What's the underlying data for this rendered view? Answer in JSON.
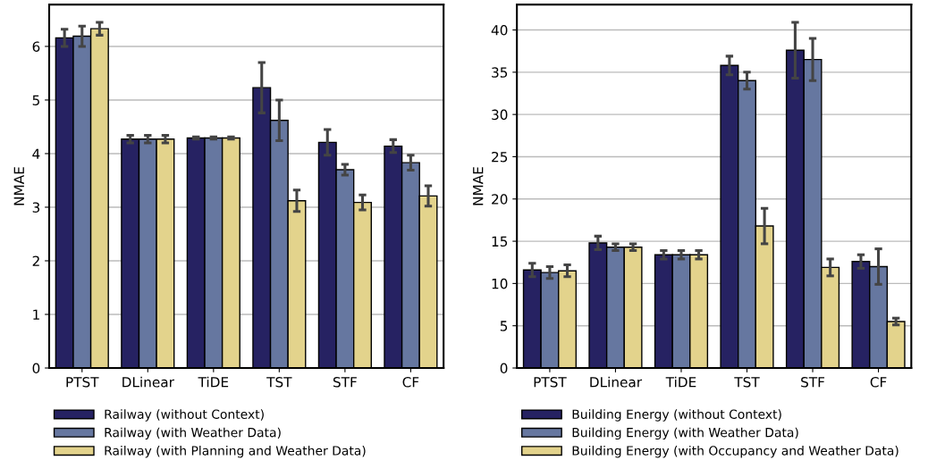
{
  "chart_data": [
    {
      "type": "bar",
      "ylabel": "NMAE",
      "categories": [
        "PTST",
        "DLinear",
        "TiDE",
        "TST",
        "STF",
        "CF"
      ],
      "ylim": [
        0,
        6.78
      ],
      "yticks": [
        0,
        1,
        2,
        3,
        4,
        5,
        6
      ],
      "grid": "y",
      "legend": "bottom",
      "series": [
        {
          "name": "Railway (without Context)",
          "color": "#262262",
          "values": [
            6.16,
            4.27,
            4.29,
            5.23,
            4.21,
            4.14
          ],
          "errors": [
            0.16,
            0.07,
            0.02,
            0.47,
            0.24,
            0.12
          ]
        },
        {
          "name": "Railway (with Weather Data)",
          "color": "#6677a0",
          "values": [
            6.19,
            4.27,
            4.29,
            4.62,
            3.7,
            3.83
          ],
          "errors": [
            0.19,
            0.07,
            0.02,
            0.38,
            0.1,
            0.14
          ]
        },
        {
          "name": "Railway (with Planning and Weather Data)",
          "color": "#e3d38c",
          "values": [
            6.33,
            4.27,
            4.29,
            3.12,
            3.09,
            3.21
          ],
          "errors": [
            0.12,
            0.07,
            0.02,
            0.2,
            0.14,
            0.19
          ]
        }
      ]
    },
    {
      "type": "bar",
      "ylabel": "NMAE",
      "categories": [
        "PTST",
        "DLinear",
        "TiDE",
        "TST",
        "STF",
        "CF"
      ],
      "ylim": [
        0,
        43
      ],
      "yticks": [
        0,
        5,
        10,
        15,
        20,
        25,
        30,
        35,
        40
      ],
      "grid": "y",
      "legend": "bottom",
      "series": [
        {
          "name": "Building Energy (without Context)",
          "color": "#262262",
          "values": [
            11.6,
            14.8,
            13.4,
            35.8,
            37.6,
            12.6
          ],
          "errors": [
            0.8,
            0.8,
            0.5,
            1.1,
            3.3,
            0.8
          ]
        },
        {
          "name": "Building Energy (with Weather Data)",
          "color": "#6677a0",
          "values": [
            11.3,
            14.3,
            13.4,
            34.0,
            36.5,
            12.0
          ],
          "errors": [
            0.7,
            0.4,
            0.5,
            1.0,
            2.5,
            2.1
          ]
        },
        {
          "name": "Building Energy (with Occupancy and Weather Data)",
          "color": "#e3d38c",
          "values": [
            11.5,
            14.3,
            13.4,
            16.8,
            11.9,
            5.5
          ],
          "errors": [
            0.7,
            0.4,
            0.5,
            2.1,
            1.0,
            0.4
          ]
        }
      ]
    }
  ]
}
